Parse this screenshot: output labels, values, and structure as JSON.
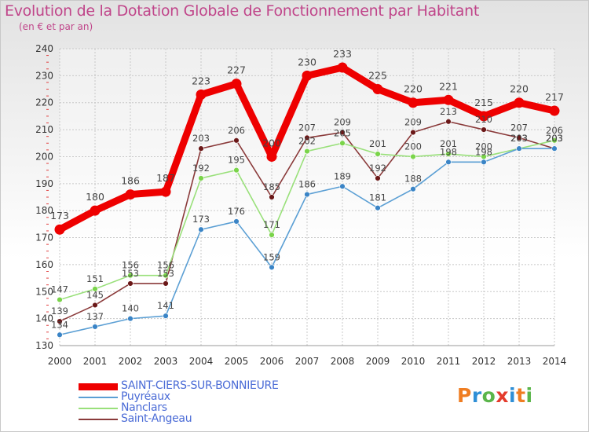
{
  "title": "Evolution de la Dotation Globale de Fonctionnement par Habitant",
  "subtitle": "(en € et par an)",
  "logo": {
    "parts": [
      "P",
      "r",
      "o",
      "x",
      "i",
      "t",
      "i"
    ],
    "colors": [
      "#ef7d22",
      "#2f8fd6",
      "#5ab54a",
      "#e43b2c",
      "#2f8fd6",
      "#ef7d22",
      "#5ab54a"
    ]
  },
  "chart_data": {
    "type": "line",
    "title": "Evolution de la Dotation Globale de Fonctionnement par Habitant",
    "ylabel": "(en € et par an)",
    "x": [
      "2000",
      "2001",
      "2002",
      "2003",
      "2004",
      "2005",
      "2006",
      "2007",
      "2008",
      "2009",
      "2010",
      "2011",
      "2012",
      "2013",
      "2014"
    ],
    "ylim": [
      130,
      240
    ],
    "yticks": [
      130,
      140,
      150,
      160,
      170,
      180,
      190,
      200,
      210,
      220,
      230,
      240
    ],
    "grid": true,
    "legend_position": "bottom-left",
    "series": [
      {
        "name": "SAINT-CIERS-SUR-BONNIEURE",
        "color": "#ee0000",
        "marker": "#ee0000",
        "labelColor": "#444444",
        "values": [
          173,
          180,
          186,
          187,
          223,
          227,
          200,
          230,
          233,
          225,
          220,
          221,
          215,
          220,
          217
        ],
        "labels": [
          "173",
          "180",
          "186",
          "187",
          "223",
          "227",
          "200",
          "230",
          "233",
          "225",
          "220",
          "221",
          "215",
          "220",
          "217"
        ]
      },
      {
        "name": "Puyréaux",
        "color": "#5b9fd4",
        "marker": "#3a84c6",
        "labelColor": "#444444",
        "values": [
          134,
          137,
          140,
          141,
          173,
          176,
          159,
          186,
          189,
          181,
          188,
          198,
          198,
          203,
          203
        ],
        "labels": [
          "134",
          "137",
          "140",
          "141",
          "173",
          "176",
          "159",
          "186",
          "189",
          "181",
          "188",
          "198",
          "198",
          "203",
          "203"
        ]
      },
      {
        "name": "Nanclars",
        "color": "#99e07a",
        "marker": "#7ad44a",
        "labelColor": "#444444",
        "values": [
          147,
          151,
          156,
          156,
          192,
          195,
          171,
          202,
          205,
          201,
          200,
          201,
          200,
          203,
          206
        ],
        "labels": [
          "147",
          "151",
          "156",
          "156",
          "192",
          "195",
          "171",
          "202",
          "205",
          "201",
          "200",
          "201",
          "200",
          "203",
          "206"
        ]
      },
      {
        "name": "Saint-Angeau",
        "color": "#8a3a3a",
        "marker": "#6b1818",
        "labelColor": "#444444",
        "values": [
          139,
          145,
          153,
          153,
          203,
          206,
          185,
          207,
          209,
          192,
          209,
          213,
          210,
          207,
          203
        ],
        "labels": [
          "139",
          "145",
          "153",
          "153",
          "203",
          "206",
          "185",
          "207",
          "209",
          "192",
          "209",
          "213",
          "210",
          "207",
          "203"
        ]
      }
    ]
  }
}
